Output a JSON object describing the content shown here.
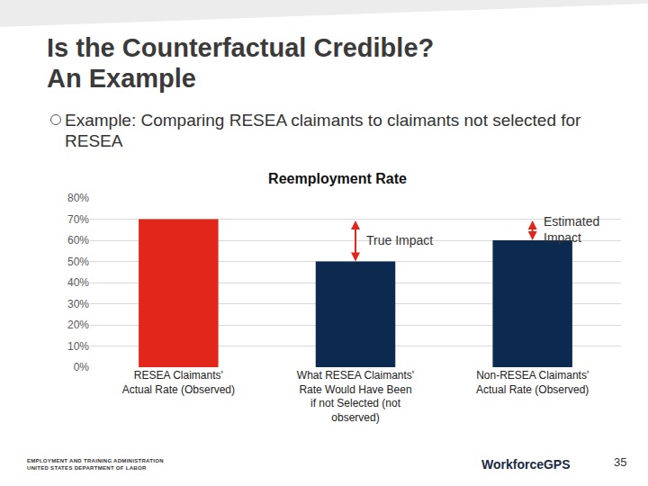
{
  "slide": {
    "title": [
      "Is the Counterfactual Credible?",
      "An Example"
    ],
    "bullet": "Example: Comparing RESEA claimants to claimants not selected for RESEA",
    "footer_left": [
      "EMPLOYMENT AND TRAINING ADMINISTRATION",
      "UNITED STATES DEPARTMENT OF LABOR"
    ],
    "footer_logo": "WorkforceGPS",
    "page_number": "35"
  },
  "chart_data": {
    "type": "bar",
    "title": "Reemployment Rate",
    "categories": [
      "RESEA Claimants' Actual Rate (Observed)",
      "What RESEA Claimants' Rate Would Have Been if not Selected (not observed)",
      "Non-RESEA Claimants' Actual Rate (Observed)"
    ],
    "values": [
      70,
      50,
      60
    ],
    "colors": [
      "#e3261c",
      "#0c2a50",
      "#0c2a50"
    ],
    "ylim": [
      0,
      80
    ],
    "yticks": [
      {
        "value": 0,
        "label": "0%"
      },
      {
        "value": 10,
        "label": "10%"
      },
      {
        "value": 20,
        "label": "20%"
      },
      {
        "value": 30,
        "label": "30%"
      },
      {
        "value": 40,
        "label": "40%"
      },
      {
        "value": 50,
        "label": "50%"
      },
      {
        "value": 60,
        "label": "60%"
      },
      {
        "value": 70,
        "label": "70%"
      },
      {
        "value": 80,
        "label": "80%"
      }
    ],
    "grid": true,
    "annotations": [
      {
        "text": "True Impact",
        "category": "What RESEA Claimants' Rate Would Have Been if not Selected (not observed)",
        "from": 70,
        "to": 50
      },
      {
        "text": "Estimated Impact",
        "category": "Non-RESEA Claimants' Actual Rate (Observed)",
        "from": 70,
        "to": 60
      }
    ]
  }
}
